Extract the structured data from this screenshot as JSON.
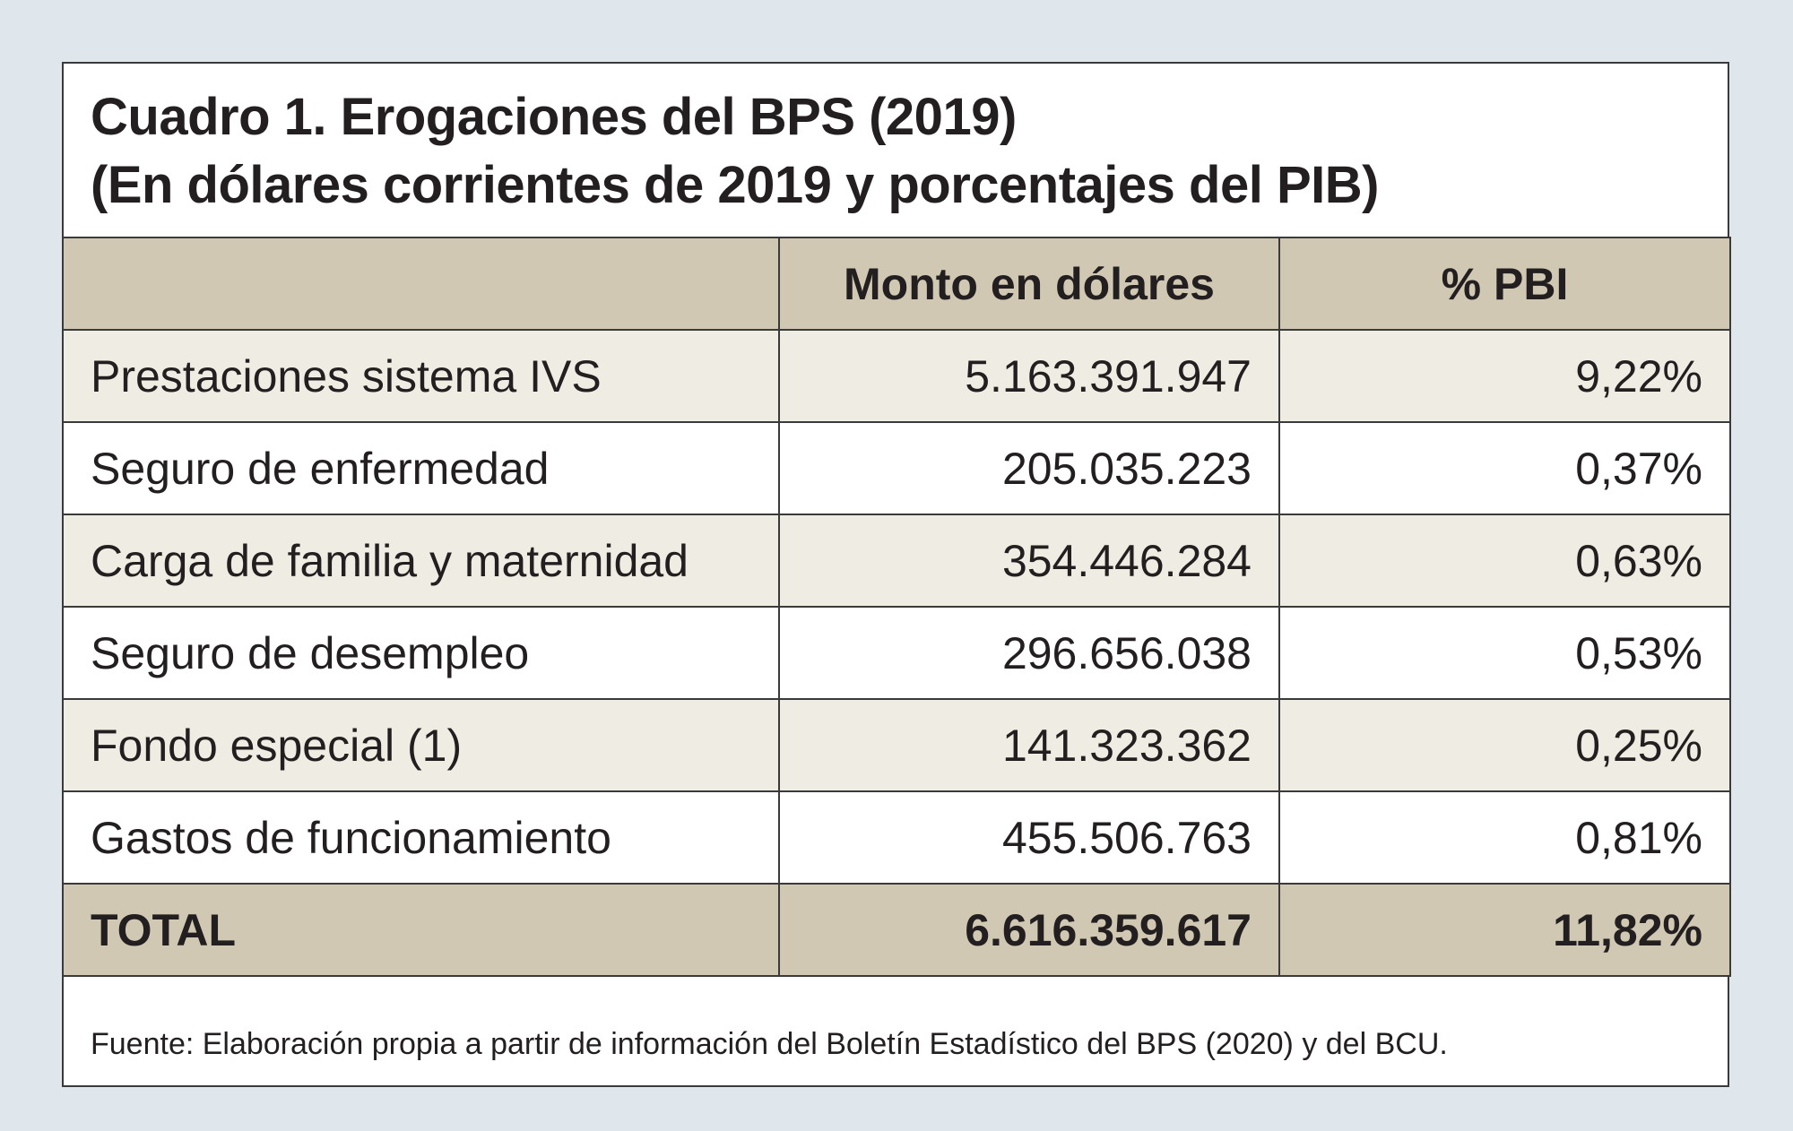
{
  "title": {
    "line1": "Cuadro 1.  Erogaciones del BPS (2019)",
    "line2": "(En dólares corrientes de 2019 y porcentajes del PIB)"
  },
  "table": {
    "headers": [
      "",
      "Monto en dólares",
      "% PBI"
    ],
    "rows": [
      {
        "label": "Prestaciones sistema IVS",
        "amount": "5.163.391.947",
        "pct": "9,22%"
      },
      {
        "label": "Seguro de enfermedad",
        "amount": "205.035.223",
        "pct": "0,37%"
      },
      {
        "label": "Carga de familia y maternidad",
        "amount": "354.446.284",
        "pct": "0,63%"
      },
      {
        "label": "Seguro de desempleo",
        "amount": "296.656.038",
        "pct": "0,53%"
      },
      {
        "label": "Fondo especial (1)",
        "amount": "141.323.362",
        "pct": "0,25%"
      },
      {
        "label": "Gastos de funcionamiento",
        "amount": "455.506.763",
        "pct": "0,81%"
      }
    ],
    "total": {
      "label": "TOTAL",
      "amount": "6.616.359.617",
      "pct": "11,82%"
    }
  },
  "source": "Fuente: Elaboración propia a partir de información del Boletín Estadístico del BPS (2020) y del BCU.",
  "colors": {
    "background": "#dfe6ec",
    "header_fill": "#d0c8b2",
    "shaded_row": "#efece3"
  }
}
